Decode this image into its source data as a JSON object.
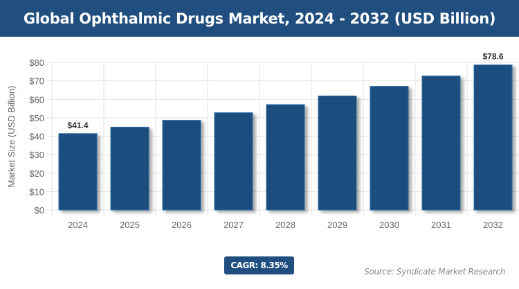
{
  "title": "Global Ophthalmic Drugs Market, 2024 - 2032 (USD Billion)",
  "cagr": "CAGR: 8.35%",
  "source": "Source: Syndicate Market Research",
  "chart_data": {
    "type": "bar",
    "title": "Global Ophthalmic Drugs Market, 2024 - 2032 (USD Billion)",
    "xlabel": "",
    "ylabel": "Market Size (USD Billion)",
    "categories": [
      "2024",
      "2025",
      "2026",
      "2027",
      "2028",
      "2029",
      "2030",
      "2031",
      "2032"
    ],
    "values": [
      41.4,
      44.9,
      48.6,
      52.7,
      57.1,
      61.8,
      67.0,
      72.6,
      78.6
    ],
    "data_labels": {
      "0": "$41.4",
      "8": "$78.6"
    },
    "ylim": [
      0,
      80
    ],
    "yticks": [
      "$0",
      "$10",
      "$20",
      "$30",
      "$40",
      "$50",
      "$60",
      "$70",
      "$80"
    ],
    "grid": true,
    "bar_color": "#1f4e7f",
    "banner_color": "#1f4e7f"
  }
}
